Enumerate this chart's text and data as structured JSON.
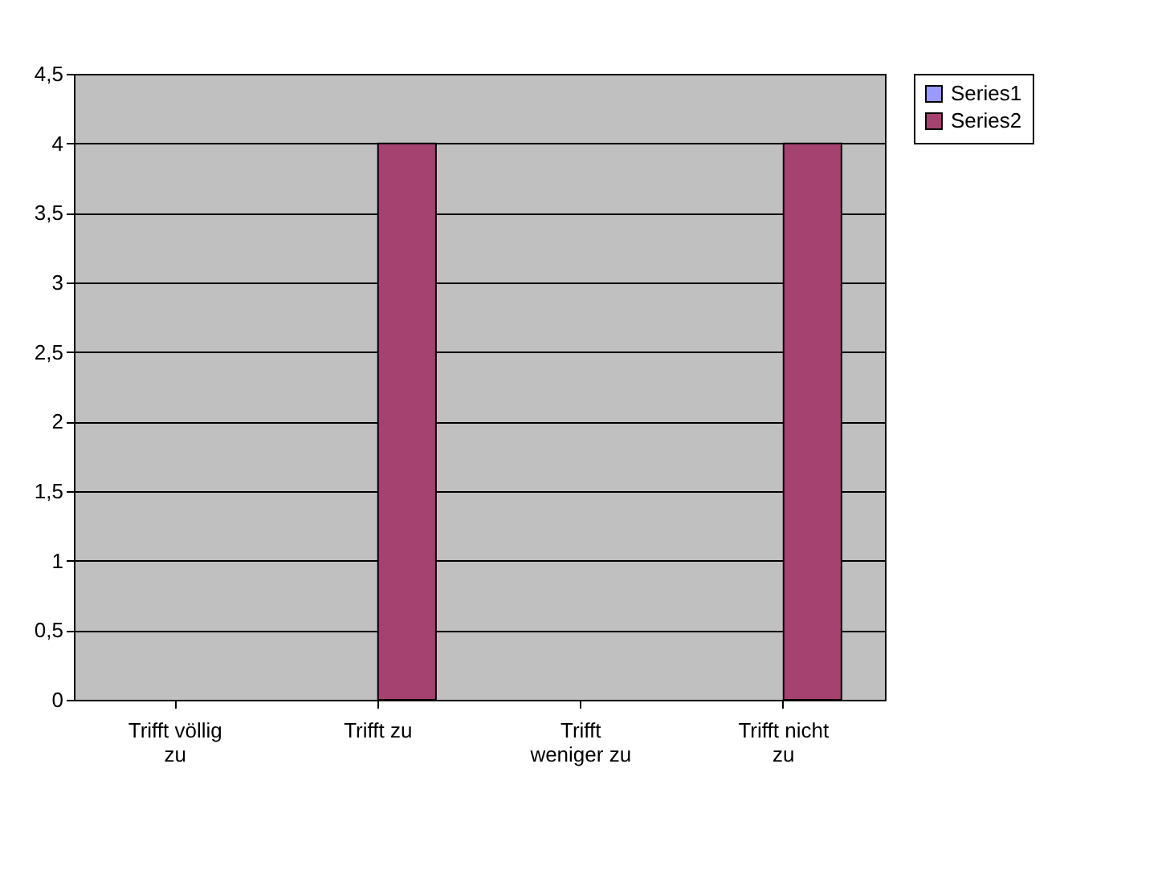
{
  "chart_data": {
    "type": "bar",
    "categories": [
      "Trifft völlig zu",
      "Trifft zu",
      "Trifft weniger zu",
      "Trifft nicht zu"
    ],
    "series": [
      {
        "name": "Series1",
        "color": "#9999ff",
        "values": [
          null,
          null,
          null,
          null
        ]
      },
      {
        "name": "Series2",
        "color": "#a5426f",
        "values": [
          null,
          4,
          null,
          4
        ]
      }
    ],
    "ylim": [
      0,
      4.5
    ],
    "yticks": [
      0,
      {
        "value": 0.5,
        "label": "0,5"
      },
      1,
      {
        "value": 1.5,
        "label": "1,5"
      },
      2,
      {
        "value": 2.5,
        "label": "2,5"
      },
      3,
      {
        "value": 3.5,
        "label": "3,5"
      },
      4,
      {
        "value": 4.5,
        "label": "4,5"
      }
    ],
    "grid": "y",
    "legend": "right"
  }
}
